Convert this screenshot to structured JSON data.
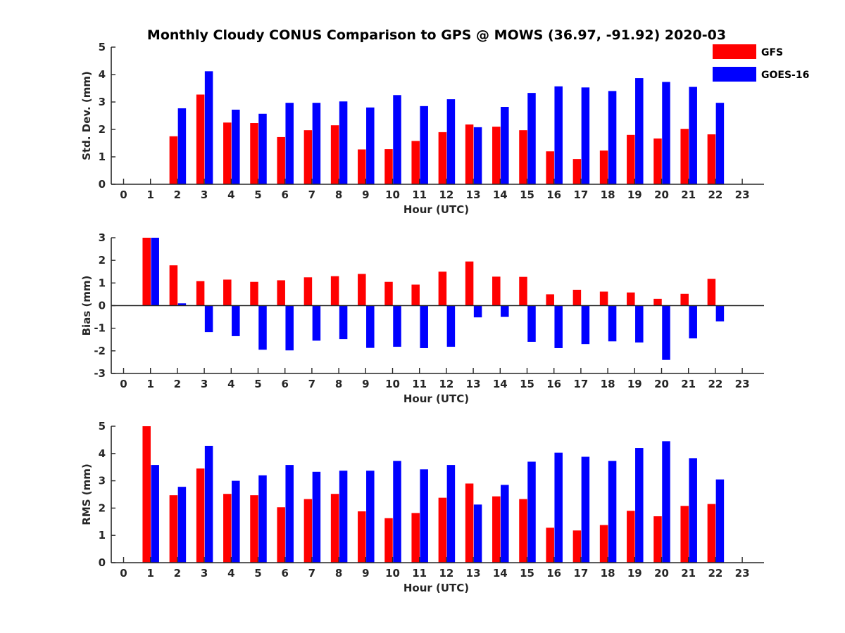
{
  "title": "Monthly Cloudy CONUS Comparison to GPS @ MOWS (36.97, -91.92) 2020-03",
  "colors": {
    "GFS": "#ff0000",
    "GOES-16": "#0000ff"
  },
  "legend": {
    "placement": "top-right",
    "items": [
      "GFS",
      "GOES-16"
    ]
  },
  "chart_data": [
    {
      "type": "bar",
      "xlabel": "Hour (UTC)",
      "ylabel": "Std. Dev. (mm)",
      "ylim": [
        0,
        5
      ],
      "yticks": [
        0,
        1,
        2,
        3,
        4,
        5
      ],
      "categories": [
        0,
        1,
        2,
        3,
        4,
        5,
        6,
        7,
        8,
        9,
        10,
        11,
        12,
        13,
        14,
        15,
        16,
        17,
        18,
        19,
        20,
        21,
        22,
        23
      ],
      "series": [
        {
          "name": "GFS",
          "values": [
            null,
            null,
            1.75,
            3.27,
            2.25,
            2.23,
            1.72,
            1.97,
            2.15,
            1.27,
            1.28,
            1.58,
            1.9,
            2.18,
            2.1,
            1.97,
            1.2,
            0.92,
            1.23,
            1.8,
            1.67,
            2.02,
            1.82,
            null
          ]
        },
        {
          "name": "GOES-16",
          "values": [
            null,
            null,
            2.77,
            4.12,
            2.72,
            2.57,
            2.97,
            2.97,
            3.02,
            2.8,
            3.25,
            2.85,
            3.1,
            2.08,
            2.82,
            3.33,
            3.57,
            3.53,
            3.4,
            3.87,
            3.73,
            3.55,
            2.97,
            null
          ]
        }
      ]
    },
    {
      "type": "bar",
      "xlabel": "Hour (UTC)",
      "ylabel": "Bias (mm)",
      "ylim": [
        -3,
        3
      ],
      "yticks": [
        -3,
        -2,
        -1,
        0,
        1,
        2,
        3
      ],
      "categories": [
        0,
        1,
        2,
        3,
        4,
        5,
        6,
        7,
        8,
        9,
        10,
        11,
        12,
        13,
        14,
        15,
        16,
        17,
        18,
        19,
        20,
        21,
        22,
        23
      ],
      "series": [
        {
          "name": "GFS",
          "values": [
            null,
            3.0,
            1.78,
            1.08,
            1.15,
            1.05,
            1.12,
            1.25,
            1.3,
            1.4,
            1.05,
            0.93,
            1.5,
            1.95,
            1.28,
            1.27,
            0.5,
            0.7,
            0.62,
            0.58,
            0.3,
            0.52,
            1.18,
            null
          ]
        },
        {
          "name": "GOES-16",
          "values": [
            null,
            3.0,
            0.1,
            -1.17,
            -1.35,
            -1.95,
            -1.98,
            -1.55,
            -1.48,
            -1.87,
            -1.82,
            -1.88,
            -1.82,
            -0.52,
            -0.5,
            -1.6,
            -1.88,
            -1.7,
            -1.58,
            -1.63,
            -2.4,
            -1.45,
            -0.7,
            null
          ]
        }
      ]
    },
    {
      "type": "bar",
      "xlabel": "Hour (UTC)",
      "ylabel": "RMS (mm)",
      "ylim": [
        0,
        5
      ],
      "yticks": [
        0,
        1,
        2,
        3,
        4,
        5
      ],
      "categories": [
        0,
        1,
        2,
        3,
        4,
        5,
        6,
        7,
        8,
        9,
        10,
        11,
        12,
        13,
        14,
        15,
        16,
        17,
        18,
        19,
        20,
        21,
        22,
        23
      ],
      "series": [
        {
          "name": "GFS",
          "values": [
            null,
            5.0,
            2.47,
            3.45,
            2.52,
            2.47,
            2.03,
            2.33,
            2.52,
            1.88,
            1.63,
            1.82,
            2.38,
            2.9,
            2.43,
            2.33,
            1.28,
            1.18,
            1.38,
            1.9,
            1.7,
            2.08,
            2.15,
            null
          ]
        },
        {
          "name": "GOES-16",
          "values": [
            null,
            3.58,
            2.78,
            4.28,
            3.0,
            3.2,
            3.58,
            3.33,
            3.37,
            3.37,
            3.73,
            3.42,
            3.58,
            2.13,
            2.85,
            3.7,
            4.03,
            3.88,
            3.73,
            4.2,
            4.45,
            3.83,
            3.05,
            null
          ]
        }
      ]
    }
  ]
}
